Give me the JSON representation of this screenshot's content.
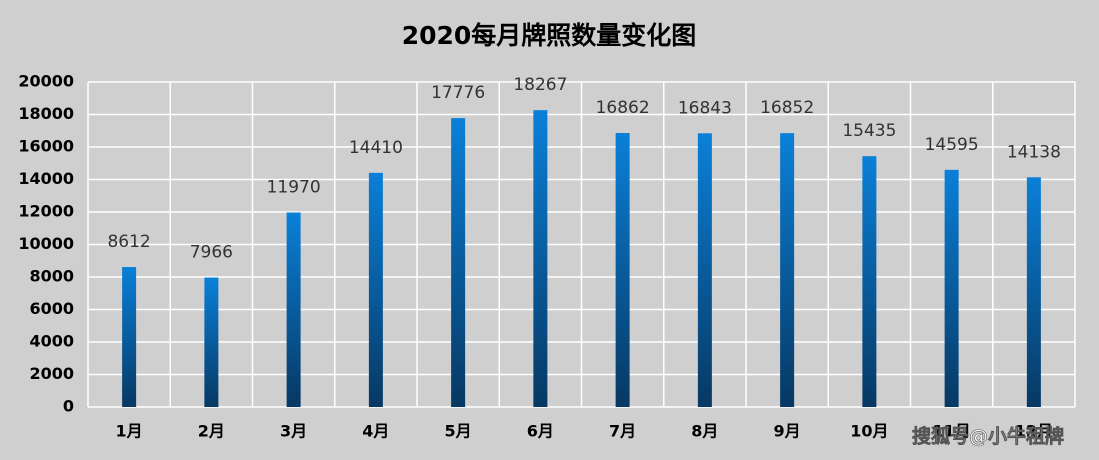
{
  "chart_data": {
    "type": "bar",
    "title": "2020每月牌照数量变化图",
    "categories": [
      "1月",
      "2月",
      "3月",
      "4月",
      "5月",
      "6月",
      "7月",
      "8月",
      "9月",
      "10月",
      "11月",
      "12月"
    ],
    "values": [
      8612,
      7966,
      11970,
      14410,
      17776,
      18267,
      16862,
      16843,
      16852,
      15435,
      14595,
      14138
    ],
    "color": "#0a80d8",
    "ylim": [
      0,
      20000
    ],
    "yticks": [
      0,
      2000,
      4000,
      6000,
      8000,
      10000,
      12000,
      14000,
      16000,
      18000,
      20000
    ],
    "grid": true
  },
  "watermark": "搜狐号@小牛租牌"
}
